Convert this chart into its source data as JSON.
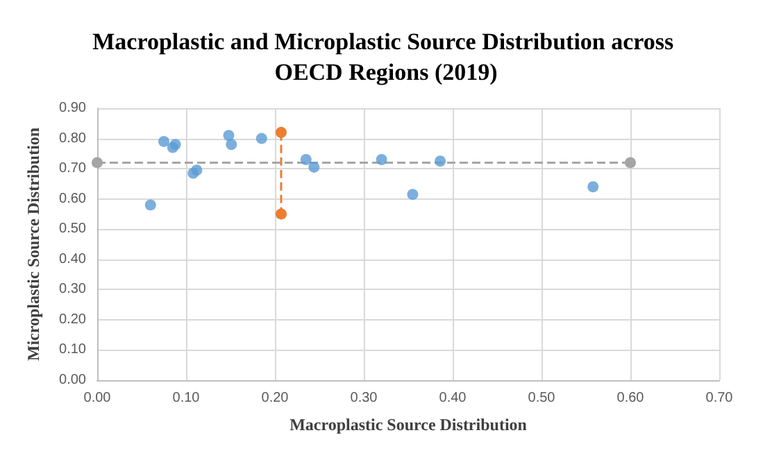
{
  "chart_data": {
    "type": "scatter",
    "title": "Macroplastic and Microplastic Source Distribution across OECD Regions (2019)",
    "xlabel": "Macroplastic Source Distribution",
    "ylabel": "Microplastic Source Distribution",
    "xlim": [
      0,
      0.7
    ],
    "xticks": [
      {
        "value": 0,
        "label": "0.00"
      },
      {
        "value": 0.1,
        "label": "0.10"
      },
      {
        "value": 0.2,
        "label": "0.20"
      },
      {
        "value": 0.3,
        "label": "0.30"
      },
      {
        "value": 0.4,
        "label": "0.40"
      },
      {
        "value": 0.5,
        "label": "0.50"
      },
      {
        "value": 0.6,
        "label": "0.60"
      },
      {
        "value": 0.7,
        "label": "0.70"
      }
    ],
    "ylim": [
      0,
      0.9
    ],
    "yticks": [
      {
        "value": 0,
        "label": "0.00"
      },
      {
        "value": 0.1,
        "label": "0.10"
      },
      {
        "value": 0.2,
        "label": "0.20"
      },
      {
        "value": 0.3,
        "label": "0.30"
      },
      {
        "value": 0.4,
        "label": "0.40"
      },
      {
        "value": 0.5,
        "label": "0.50"
      },
      {
        "value": 0.6,
        "label": "0.60"
      },
      {
        "value": 0.7,
        "label": "0.70"
      },
      {
        "value": 0.8,
        "label": "0.80"
      },
      {
        "value": 0.9,
        "label": "0.90"
      }
    ],
    "grid": true,
    "marker": "circle",
    "series": [
      {
        "color": "#5b9bd5",
        "x": [
          0.06,
          0.075,
          0.085,
          0.088,
          0.108,
          0.112,
          0.148,
          0.151,
          0.185,
          0.235,
          0.244,
          0.32,
          0.355,
          0.386,
          0.558
        ],
        "values": [
          0.58,
          0.79,
          0.77,
          0.78,
          0.685,
          0.695,
          0.81,
          0.78,
          0.8,
          0.73,
          0.705,
          0.73,
          0.615,
          0.725,
          0.64
        ]
      },
      {
        "type": "line",
        "line_style": "dashed",
        "color": "#ed7d31",
        "x": [
          0.207,
          0.207
        ],
        "values": [
          0.82,
          0.55
        ]
      },
      {
        "type": "line",
        "line_style": "dashed",
        "color": "#a5a5a5",
        "x": [
          0,
          0.6
        ],
        "values": [
          0.72,
          0.72
        ]
      }
    ]
  }
}
